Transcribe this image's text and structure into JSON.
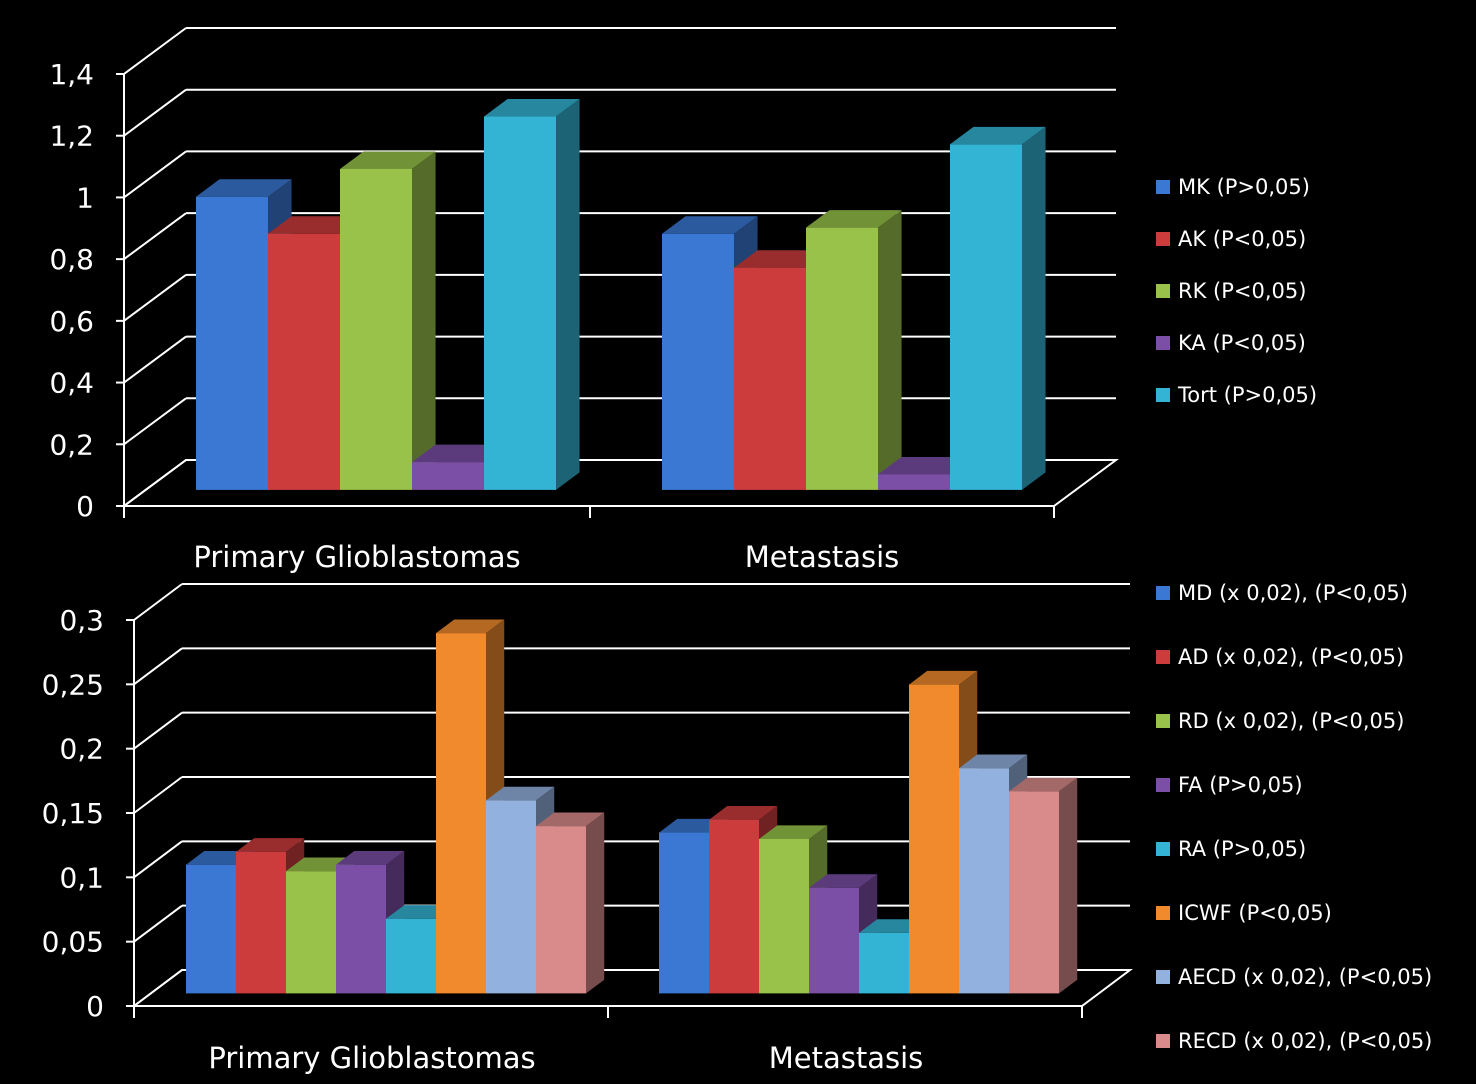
{
  "chart_data": [
    {
      "type": "bar",
      "title": "",
      "xlabel": "",
      "ylabel": "",
      "ylim": [
        0,
        1.4
      ],
      "yticks": [
        "0",
        "0,2",
        "0,4",
        "0,6",
        "0,8",
        "1",
        "1,2",
        "1,4"
      ],
      "categories": [
        "Primary Glioblastomas",
        "Metastasis"
      ],
      "legend_position": "right",
      "series": [
        {
          "name": "MK (P>0,05)",
          "color": "#3b78d4",
          "values": [
            0.95,
            0.83
          ]
        },
        {
          "name": "AK (P<0,05)",
          "color": "#cc3c3c",
          "values": [
            0.83,
            0.72
          ]
        },
        {
          "name": "RK (P<0,05)",
          "color": "#98c24a",
          "values": [
            1.04,
            0.85
          ]
        },
        {
          "name": "KA (P<0,05)",
          "color": "#7b4fa6",
          "values": [
            0.09,
            0.05
          ]
        },
        {
          "name": "Tort (P>0,05)",
          "color": "#33b4d4",
          "values": [
            1.21,
            1.12
          ]
        }
      ]
    },
    {
      "type": "bar",
      "title": "",
      "xlabel": "",
      "ylabel": "",
      "ylim": [
        0,
        0.3
      ],
      "yticks": [
        "0",
        "0,05",
        "0,1",
        "0,15",
        "0,2",
        "0,25",
        "0,3"
      ],
      "categories": [
        "Primary Glioblastomas",
        "Metastasis"
      ],
      "legend_position": "right",
      "series": [
        {
          "name": "MD (x 0,02), (P<0,05)",
          "color": "#3b78d4",
          "values": [
            0.1,
            0.125
          ]
        },
        {
          "name": "AD (x 0,02), (P<0,05)",
          "color": "#cc3c3c",
          "values": [
            0.11,
            0.135
          ]
        },
        {
          "name": "RD (x 0,02), (P<0,05)",
          "color": "#98c24a",
          "values": [
            0.095,
            0.12
          ]
        },
        {
          "name": "FA (P>0,05)",
          "color": "#7b4fa6",
          "values": [
            0.1,
            0.082
          ]
        },
        {
          "name": "RA (P>0,05)",
          "color": "#33b4d4",
          "values": [
            0.058,
            0.047
          ]
        },
        {
          "name": "ICWF (P<0,05)",
          "color": "#f08a2c",
          "values": [
            0.28,
            0.24
          ]
        },
        {
          "name": "AECD (x 0,02), (P<0,05)",
          "color": "#93b1de",
          "values": [
            0.15,
            0.175
          ]
        },
        {
          "name": "RECD (x 0,02), (P<0,05)",
          "color": "#d98a8a",
          "values": [
            0.13,
            0.157
          ]
        }
      ]
    }
  ]
}
